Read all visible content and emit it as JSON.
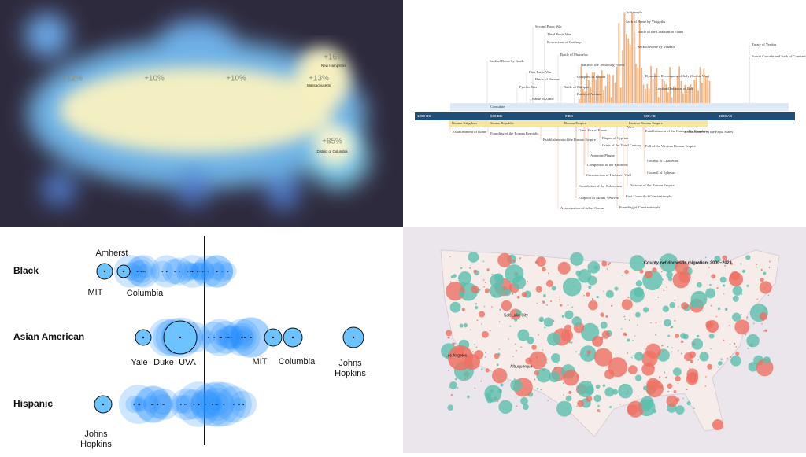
{
  "top_left": {
    "growth_labels": [
      "+12%",
      "+10%",
      "+10%",
      "+13%",
      "+16%",
      "+85%"
    ],
    "places": [
      "New Hampshire",
      "Massachusetts",
      "District of Columbia"
    ]
  },
  "top_right": {
    "axis": [
      "1000 BC",
      "500 BC",
      "0 BC",
      "500 AD",
      "1000 AD"
    ],
    "eras": [
      "Roman Kingdom",
      "Roman Republic",
      "Roman Empire",
      "Eastern Roman Empire"
    ],
    "bands": [
      "Consulate",
      "West"
    ],
    "events_above": [
      "Adrianople",
      "Sack of Rome by Visigoths",
      "Battle of the Catalaunian Plains",
      "Sack of Rome by Vandals",
      "Second Punic War",
      "Third Punic War",
      "Destruction of Carthage",
      "Battle of Pharsalus",
      "Sack of Rome by Gauls",
      "First Punic War",
      "Battle of Cannae",
      "Battle of Philippi",
      "Battle of the Teutoburg Forest",
      "Conquest of Britain",
      "Pyrrhic War",
      "Battle of Actium",
      "Battle of Zama",
      "Byzantine Reconquest of Italy (Gothic War)",
      "Lombard Invasion of Italy",
      "Treaty of Verdun",
      "Fourth Crusade and Sack of Constantinople"
    ],
    "events_below": [
      "Establishment of Rome",
      "Founding of the Roman Republic",
      "Great Fire of Rome",
      "Establishment of the Roman Empire",
      "Plague of Cyprian",
      "Crisis of the Third Century",
      "Antonine Plague",
      "Completion of the Pantheon",
      "Construction of Hadrian's Wall",
      "Completion of the Colosseum",
      "Eruption of Mount Vesuvius",
      "Assassination of Julius Caesar",
      "Establishment of the Ostrogothic Kingdom",
      "Fall of the Western Roman Empire",
      "Council of Chalcedon",
      "Council of Ephesus",
      "Division of the Roman Empire",
      "First Council of Constantinople",
      "Founding of Constantinople",
      "Establishment of the Papal States"
    ]
  },
  "bottom_left": {
    "groups": [
      "Black",
      "Asian American",
      "Hispanic"
    ],
    "schools": [
      "Amherst",
      "MIT",
      "Columbia",
      "Yale",
      "Duke",
      "UVA",
      "MIT",
      "Columbia",
      "Johns Hopkins",
      "Johns Hopkins"
    ]
  },
  "bottom_right": {
    "title": "County net domestic migration, 2000–2023",
    "cities": [
      "Salt Lake City",
      "Albuquerque",
      "Los Angeles"
    ]
  }
}
